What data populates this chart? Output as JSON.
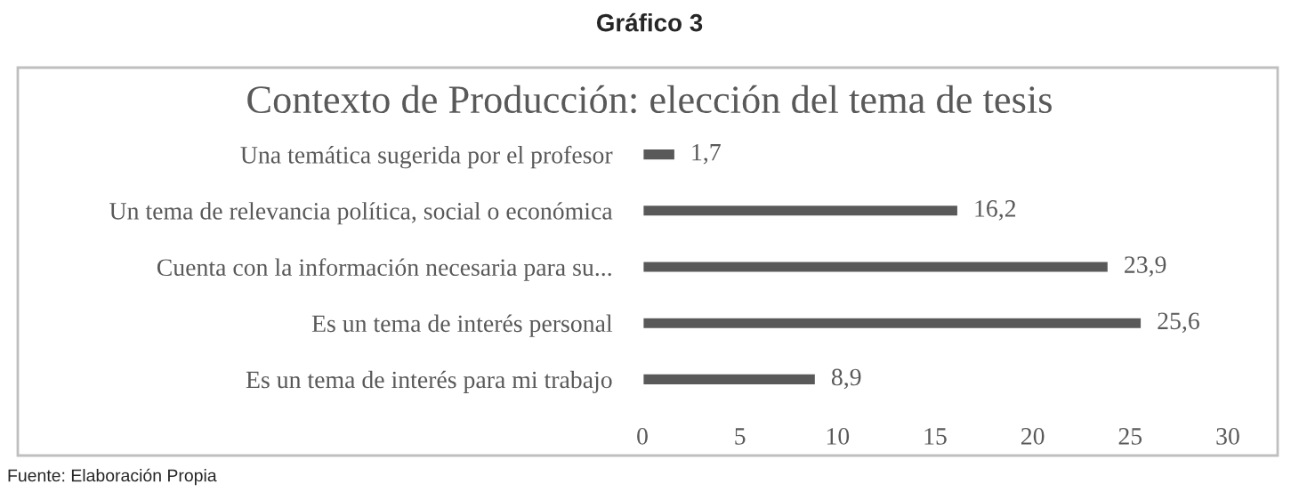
{
  "chart_data": {
    "type": "bar",
    "orientation": "horizontal",
    "title": "Gráfico 3",
    "subtitle": "Contexto de Producción: elección del tema de tesis",
    "categories": [
      "Una temática sugerida por el profesor",
      "Un tema de relevancia política, social o económica",
      "Cuenta con la información necesaria para su...",
      "Es un tema de interés personal",
      "Es un tema de interés para mi trabajo"
    ],
    "values": [
      1.7,
      16.2,
      23.9,
      25.6,
      8.9
    ],
    "value_labels": [
      "1,7",
      "16,2",
      "23,9",
      "25,6",
      "8,9"
    ],
    "color": "#595959",
    "xlim": [
      0,
      30
    ],
    "xticks": [
      0,
      5,
      10,
      15,
      20,
      25,
      30
    ],
    "grid": false,
    "legend": false,
    "annotations": [
      "Fuente: Elaboración Propia"
    ]
  }
}
